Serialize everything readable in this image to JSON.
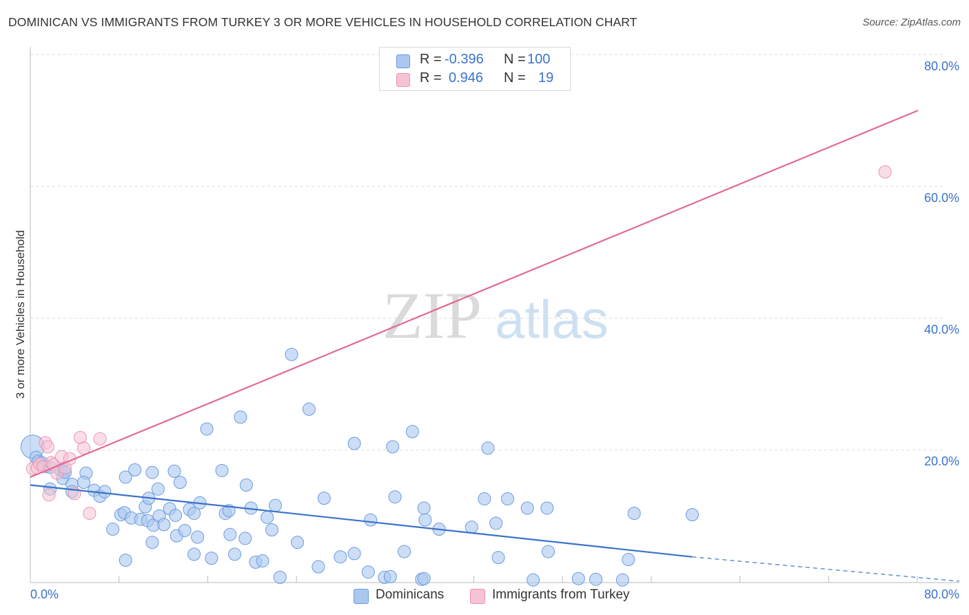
{
  "title": "DOMINICAN VS IMMIGRANTS FROM TURKEY 3 OR MORE VEHICLES IN HOUSEHOLD CORRELATION CHART",
  "source": "Source: ZipAtlas.com",
  "watermark": {
    "zip": "ZIP",
    "atlas": "atlas"
  },
  "legend_top": {
    "rows": [
      {
        "r_label": "R =",
        "r_value": "-0.396",
        "n_label": "N =",
        "n_value": "100"
      },
      {
        "r_label": "R =",
        "r_value": "0.946",
        "n_label": "N =",
        "n_value": "19"
      }
    ]
  },
  "legend_bottom": {
    "items": [
      "Dominicans",
      "Immigrants from Turkey"
    ]
  },
  "colors": {
    "blue": "#3a72c9",
    "blue_fill": "#aac8ef",
    "blue_stroke": "#6b9ae0",
    "pink": "#e06a93",
    "pink_fill": "#f6c3d4",
    "pink_stroke": "#ea93b2",
    "grid": "#dcdcdc",
    "axis_text": "#3a72c9"
  },
  "chart_data": {
    "type": "scatter",
    "title": "DOMINICAN VS IMMIGRANTS FROM TURKEY 3 OR MORE VEHICLES IN HOUSEHOLD CORRELATION CHART",
    "xlabel": "",
    "ylabel": "3 or more Vehicles in Household",
    "xlim": [
      0,
      80
    ],
    "ylim": [
      0,
      80
    ],
    "x_tick_labels": [
      "0.0%",
      "80.0%"
    ],
    "y_tick_labels": [
      "20.0%",
      "40.0%",
      "60.0%",
      "80.0%"
    ],
    "y_ticks": [
      20,
      40,
      60,
      80
    ],
    "grid": true,
    "series": [
      {
        "name": "Dominicans",
        "r": -0.396,
        "n": 100,
        "trend": {
          "x0": 0,
          "y0": 14.8,
          "x1": 57,
          "y1": 3.9,
          "dash_to_x": 80,
          "dash_to_y": 0.2
        },
        "points": [
          [
            0.2,
            20.6
          ],
          [
            0.5,
            19.0
          ],
          [
            0.7,
            18.4
          ],
          [
            1.0,
            18.2
          ],
          [
            1.3,
            17.6
          ],
          [
            1.7,
            17.5
          ],
          [
            2.6,
            17.1
          ],
          [
            1.7,
            14.2
          ],
          [
            2.9,
            16.9
          ],
          [
            2.8,
            15.8
          ],
          [
            3.0,
            16.7
          ],
          [
            3.6,
            14.9
          ],
          [
            3.6,
            13.8
          ],
          [
            4.8,
            16.6
          ],
          [
            4.6,
            15.2
          ],
          [
            5.5,
            14.0
          ],
          [
            6.0,
            13.1
          ],
          [
            6.4,
            13.8
          ],
          [
            7.1,
            8.1
          ],
          [
            7.8,
            10.3
          ],
          [
            8.2,
            16.0
          ],
          [
            8.1,
            10.6
          ],
          [
            8.7,
            9.8
          ],
          [
            8.2,
            3.4
          ],
          [
            9.0,
            17.1
          ],
          [
            9.5,
            9.6
          ],
          [
            9.9,
            11.5
          ],
          [
            10.2,
            12.8
          ],
          [
            10.1,
            9.4
          ],
          [
            10.6,
            8.7
          ],
          [
            10.5,
            16.7
          ],
          [
            10.5,
            6.1
          ],
          [
            11.0,
            14.2
          ],
          [
            11.1,
            10.1
          ],
          [
            11.5,
            8.8
          ],
          [
            12.0,
            11.2
          ],
          [
            12.5,
            10.2
          ],
          [
            12.4,
            16.9
          ],
          [
            12.6,
            7.1
          ],
          [
            12.9,
            15.2
          ],
          [
            13.3,
            7.9
          ],
          [
            13.7,
            11.1
          ],
          [
            14.1,
            10.5
          ],
          [
            14.1,
            4.3
          ],
          [
            14.4,
            6.9
          ],
          [
            14.6,
            12.1
          ],
          [
            15.2,
            23.3
          ],
          [
            15.6,
            3.7
          ],
          [
            16.5,
            17.0
          ],
          [
            16.8,
            10.5
          ],
          [
            17.1,
            10.9
          ],
          [
            17.2,
            7.3
          ],
          [
            17.6,
            4.3
          ],
          [
            18.1,
            25.1
          ],
          [
            18.5,
            6.7
          ],
          [
            18.6,
            14.8
          ],
          [
            19.0,
            11.3
          ],
          [
            19.4,
            3.1
          ],
          [
            20.0,
            3.3
          ],
          [
            20.4,
            9.9
          ],
          [
            20.8,
            8.0
          ],
          [
            21.1,
            11.7
          ],
          [
            21.5,
            0.8
          ],
          [
            22.5,
            34.6
          ],
          [
            23.0,
            6.1
          ],
          [
            24.0,
            26.3
          ],
          [
            24.8,
            2.4
          ],
          [
            25.3,
            12.8
          ],
          [
            26.7,
            3.9
          ],
          [
            27.9,
            4.4
          ],
          [
            27.9,
            21.1
          ],
          [
            29.1,
            1.6
          ],
          [
            29.3,
            9.5
          ],
          [
            30.5,
            0.8
          ],
          [
            31.0,
            0.9
          ],
          [
            31.2,
            20.6
          ],
          [
            31.4,
            13.0
          ],
          [
            32.2,
            4.7
          ],
          [
            32.9,
            22.9
          ],
          [
            33.7,
            0.5
          ],
          [
            33.9,
            0.6
          ],
          [
            33.9,
            11.3
          ],
          [
            34.0,
            9.5
          ],
          [
            35.2,
            8.1
          ],
          [
            38.0,
            8.4
          ],
          [
            39.1,
            12.7
          ],
          [
            39.4,
            20.4
          ],
          [
            40.1,
            9.0
          ],
          [
            40.3,
            3.8
          ],
          [
            41.1,
            12.7
          ],
          [
            42.8,
            11.3
          ],
          [
            43.3,
            0.4
          ],
          [
            44.5,
            11.3
          ],
          [
            44.6,
            4.7
          ],
          [
            47.2,
            0.6
          ],
          [
            48.7,
            0.5
          ],
          [
            51.0,
            0.4
          ],
          [
            51.5,
            3.5
          ],
          [
            52.0,
            10.5
          ],
          [
            57.0,
            10.3
          ]
        ]
      },
      {
        "name": "Immigrants from Turkey",
        "r": 0.946,
        "n": 19,
        "trend": {
          "x0": 0,
          "y0": 16.0,
          "x1": 80,
          "y1": 74.2
        },
        "points": [
          [
            0.2,
            17.3
          ],
          [
            0.6,
            17.4
          ],
          [
            0.8,
            18.0
          ],
          [
            1.1,
            17.6
          ],
          [
            1.3,
            21.2
          ],
          [
            1.5,
            20.6
          ],
          [
            1.6,
            13.3
          ],
          [
            1.8,
            18.2
          ],
          [
            2.0,
            17.9
          ],
          [
            2.3,
            16.6
          ],
          [
            2.7,
            19.1
          ],
          [
            3.0,
            17.4
          ],
          [
            3.4,
            18.8
          ],
          [
            3.8,
            13.5
          ],
          [
            4.3,
            22.0
          ],
          [
            4.6,
            20.4
          ],
          [
            5.1,
            10.5
          ],
          [
            6.0,
            21.8
          ],
          [
            73.6,
            62.3
          ]
        ]
      }
    ]
  }
}
